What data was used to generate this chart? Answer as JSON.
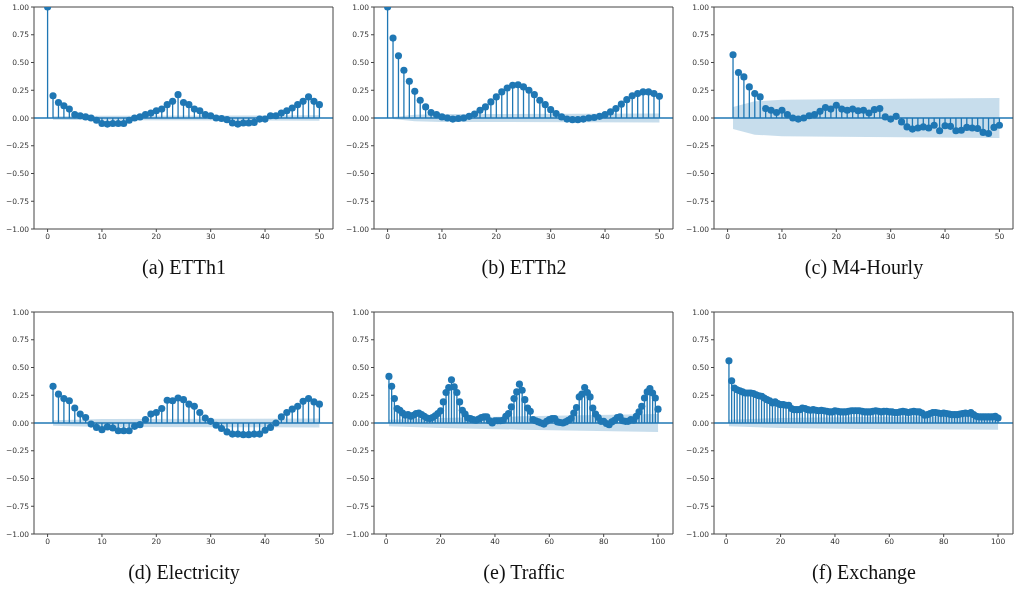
{
  "chart_data": [
    {
      "type": "lollipop",
      "title": "(a) ETTh1",
      "xlim": [
        -2.5,
        52.5
      ],
      "xticks": [
        0,
        10,
        20,
        30,
        40,
        50
      ],
      "ylim": [
        -1,
        1
      ],
      "yticks": [
        {
          "value": -1,
          "label": "−1.00"
        },
        {
          "value": -0.75,
          "label": "−0.75"
        },
        {
          "value": -0.5,
          "label": "−0.50"
        },
        {
          "value": -0.25,
          "label": "−0.25"
        },
        {
          "value": 0,
          "label": "0.00"
        },
        {
          "value": 0.25,
          "label": "0.25"
        },
        {
          "value": 0.5,
          "label": "0.50"
        },
        {
          "value": 0.75,
          "label": "0.75"
        },
        {
          "value": 1,
          "label": "1.00"
        }
      ],
      "ref_lines": [
        {
          "axis": "y",
          "value": 0,
          "color": "#1f77b4"
        }
      ],
      "series": [
        {
          "color": "#1f77b4",
          "x": [
            0,
            1,
            2,
            3,
            4,
            5,
            6,
            7,
            8,
            9,
            10,
            11,
            12,
            13,
            14,
            15,
            16,
            17,
            18,
            19,
            20,
            21,
            22,
            23,
            24,
            25,
            26,
            27,
            28,
            29,
            30,
            31,
            32,
            33,
            34,
            35,
            36,
            37,
            38,
            39,
            40,
            41,
            42,
            43,
            44,
            45,
            46,
            47,
            48,
            49,
            50
          ],
          "values": [
            1.0,
            0.2,
            0.14,
            0.11,
            0.08,
            0.03,
            0.02,
            0.01,
            0.0,
            -0.02,
            -0.05,
            -0.055,
            -0.05,
            -0.05,
            -0.05,
            -0.02,
            0.0,
            0.01,
            0.03,
            0.045,
            0.065,
            0.08,
            0.12,
            0.15,
            0.21,
            0.14,
            0.12,
            0.08,
            0.065,
            0.03,
            0.02,
            0.0,
            -0.005,
            -0.015,
            -0.045,
            -0.055,
            -0.045,
            -0.045,
            -0.04,
            -0.01,
            -0.01,
            0.02,
            0.02,
            0.045,
            0.065,
            0.09,
            0.12,
            0.15,
            0.19,
            0.15,
            0.12
          ]
        },
        {
          "type": "area",
          "color": "#1f77b4",
          "x": [
            1,
            10,
            50
          ],
          "values": [
            null,
            null,
            null
          ],
          "lower": [
            -0.015,
            -0.02,
            -0.025
          ],
          "upper": [
            0.015,
            0.02,
            0.025
          ]
        }
      ]
    },
    {
      "type": "lollipop",
      "title": "(b) ETTh2",
      "xlim": [
        -2.5,
        52.5
      ],
      "xticks": [
        0,
        10,
        20,
        30,
        40,
        50
      ],
      "ylim": [
        -1,
        1
      ],
      "yticks": [
        {
          "value": -1,
          "label": "−1.00"
        },
        {
          "value": -0.75,
          "label": "−0.75"
        },
        {
          "value": -0.5,
          "label": "−0.50"
        },
        {
          "value": -0.25,
          "label": "−0.25"
        },
        {
          "value": 0,
          "label": "0.00"
        },
        {
          "value": 0.25,
          "label": "0.25"
        },
        {
          "value": 0.5,
          "label": "0.50"
        },
        {
          "value": 0.75,
          "label": "0.75"
        },
        {
          "value": 1,
          "label": "1.00"
        }
      ],
      "ref_lines": [
        {
          "axis": "y",
          "value": 0,
          "color": "#1f77b4"
        }
      ],
      "series": [
        {
          "color": "#1f77b4",
          "x": [
            0,
            1,
            2,
            3,
            4,
            5,
            6,
            7,
            8,
            9,
            10,
            11,
            12,
            13,
            14,
            15,
            16,
            17,
            18,
            19,
            20,
            21,
            22,
            23,
            24,
            25,
            26,
            27,
            28,
            29,
            30,
            31,
            32,
            33,
            34,
            35,
            36,
            37,
            38,
            39,
            40,
            41,
            42,
            43,
            44,
            45,
            46,
            47,
            48,
            49,
            50
          ],
          "values": [
            1.0,
            0.72,
            0.56,
            0.43,
            0.33,
            0.24,
            0.16,
            0.1,
            0.05,
            0.03,
            0.01,
            0.0,
            -0.01,
            -0.005,
            0.0,
            0.015,
            0.035,
            0.07,
            0.1,
            0.145,
            0.19,
            0.235,
            0.27,
            0.295,
            0.3,
            0.28,
            0.25,
            0.21,
            0.16,
            0.12,
            0.075,
            0.04,
            0.01,
            -0.01,
            -0.015,
            -0.015,
            -0.01,
            0.0,
            0.005,
            0.015,
            0.03,
            0.055,
            0.085,
            0.125,
            0.165,
            0.2,
            0.22,
            0.235,
            0.235,
            0.22,
            0.195
          ]
        },
        {
          "type": "area",
          "color": "#1f77b4",
          "x": [
            1,
            5,
            10,
            50
          ],
          "values": [
            null,
            null,
            null,
            null
          ],
          "lower": [
            -0.01,
            -0.03,
            -0.035,
            -0.04
          ],
          "upper": [
            0.01,
            0.03,
            0.035,
            0.04
          ]
        }
      ]
    },
    {
      "type": "lollipop",
      "title": "(c) M4-Hourly",
      "xlim": [
        -2.5,
        52.5
      ],
      "xticks": [
        0,
        10,
        20,
        30,
        40,
        50
      ],
      "ylim": [
        -1,
        1
      ],
      "yticks": [
        {
          "value": -1,
          "label": "−1.00"
        },
        {
          "value": -0.75,
          "label": "−0.75"
        },
        {
          "value": -0.5,
          "label": "−0.50"
        },
        {
          "value": -0.25,
          "label": "−0.25"
        },
        {
          "value": 0,
          "label": "0.00"
        },
        {
          "value": 0.25,
          "label": "0.25"
        },
        {
          "value": 0.5,
          "label": "0.50"
        },
        {
          "value": 0.75,
          "label": "0.75"
        },
        {
          "value": 1,
          "label": "1.00"
        }
      ],
      "ref_lines": [
        {
          "axis": "y",
          "value": 0,
          "color": "#1f77b4"
        }
      ],
      "series": [
        {
          "color": "#1f77b4",
          "x": [
            1,
            2,
            3,
            4,
            5,
            6,
            7,
            8,
            9,
            10,
            11,
            12,
            13,
            14,
            15,
            16,
            17,
            18,
            19,
            20,
            21,
            22,
            23,
            24,
            25,
            26,
            27,
            28,
            29,
            30,
            31,
            32,
            33,
            34,
            35,
            36,
            37,
            38,
            39,
            40,
            41,
            42,
            43,
            44,
            45,
            46,
            47,
            48,
            49,
            50
          ],
          "values": [
            0.57,
            0.41,
            0.37,
            0.28,
            0.22,
            0.19,
            0.085,
            0.07,
            0.05,
            0.07,
            0.03,
            0.0,
            -0.01,
            0.0,
            0.02,
            0.03,
            0.06,
            0.095,
            0.08,
            0.115,
            0.08,
            0.07,
            0.08,
            0.065,
            0.07,
            0.045,
            0.075,
            0.085,
            0.01,
            -0.01,
            0.015,
            -0.035,
            -0.08,
            -0.1,
            -0.09,
            -0.08,
            -0.09,
            -0.065,
            -0.115,
            -0.07,
            -0.075,
            -0.115,
            -0.11,
            -0.085,
            -0.09,
            -0.095,
            -0.13,
            -0.14,
            -0.085,
            -0.065
          ]
        },
        {
          "type": "area",
          "color": "#1f77b4",
          "x": [
            1,
            5,
            10,
            20,
            50
          ],
          "values": [
            null,
            null,
            null,
            null,
            null
          ],
          "lower": [
            -0.1,
            -0.15,
            -0.165,
            -0.17,
            -0.18
          ],
          "upper": [
            0.1,
            0.15,
            0.165,
            0.17,
            0.18
          ]
        }
      ]
    },
    {
      "type": "lollipop",
      "title": "(d) Electricity",
      "xlim": [
        -2.5,
        52.5
      ],
      "xticks": [
        0,
        10,
        20,
        30,
        40,
        50
      ],
      "ylim": [
        -1,
        1
      ],
      "yticks": [
        {
          "value": -1,
          "label": "−1.00"
        },
        {
          "value": -0.75,
          "label": "−0.75"
        },
        {
          "value": -0.5,
          "label": "−0.50"
        },
        {
          "value": -0.25,
          "label": "−0.25"
        },
        {
          "value": 0,
          "label": "0.00"
        },
        {
          "value": 0.25,
          "label": "0.25"
        },
        {
          "value": 0.5,
          "label": "0.50"
        },
        {
          "value": 0.75,
          "label": "0.75"
        },
        {
          "value": 1,
          "label": "1.00"
        }
      ],
      "ref_lines": [
        {
          "axis": "y",
          "value": 0,
          "color": "#1f77b4"
        }
      ],
      "series": [
        {
          "color": "#1f77b4",
          "x": [
            1,
            2,
            3,
            4,
            5,
            6,
            7,
            8,
            9,
            10,
            11,
            12,
            13,
            14,
            15,
            16,
            17,
            18,
            19,
            20,
            21,
            22,
            23,
            24,
            25,
            26,
            27,
            28,
            29,
            30,
            31,
            32,
            33,
            34,
            35,
            36,
            37,
            38,
            39,
            40,
            41,
            42,
            43,
            44,
            45,
            46,
            47,
            48,
            49,
            50
          ],
          "values": [
            0.33,
            0.26,
            0.22,
            0.2,
            0.135,
            0.08,
            0.05,
            -0.01,
            -0.04,
            -0.06,
            -0.035,
            -0.045,
            -0.07,
            -0.07,
            -0.07,
            -0.03,
            -0.015,
            0.03,
            0.08,
            0.095,
            0.13,
            0.205,
            0.2,
            0.225,
            0.21,
            0.17,
            0.15,
            0.095,
            0.045,
            0.015,
            -0.02,
            -0.05,
            -0.08,
            -0.1,
            -0.1,
            -0.105,
            -0.105,
            -0.1,
            -0.1,
            -0.065,
            -0.04,
            0.0,
            0.055,
            0.095,
            0.125,
            0.15,
            0.195,
            0.22,
            0.19,
            0.17
          ]
        },
        {
          "type": "area",
          "color": "#1f77b4",
          "x": [
            1,
            10,
            50
          ],
          "values": [
            null,
            null,
            null
          ],
          "lower": [
            -0.025,
            -0.035,
            -0.04
          ],
          "upper": [
            0.025,
            0.035,
            0.04
          ]
        }
      ]
    },
    {
      "type": "lollipop",
      "title": "(e) Traffic",
      "xlim": [
        -4.5,
        105.5
      ],
      "xticks": [
        0,
        20,
        40,
        60,
        80,
        100
      ],
      "ylim": [
        -1,
        1
      ],
      "yticks": [
        {
          "value": -1,
          "label": "−1.00"
        },
        {
          "value": -0.75,
          "label": "−0.75"
        },
        {
          "value": -0.5,
          "label": "−0.50"
        },
        {
          "value": -0.25,
          "label": "−0.25"
        },
        {
          "value": 0,
          "label": "0.00"
        },
        {
          "value": 0.25,
          "label": "0.25"
        },
        {
          "value": 0.5,
          "label": "0.50"
        },
        {
          "value": 0.75,
          "label": "0.75"
        },
        {
          "value": 1,
          "label": "1.00"
        }
      ],
      "ref_lines": [
        {
          "axis": "y",
          "value": 0,
          "color": "#1f77b4"
        }
      ],
      "series": [
        {
          "color": "#1f77b4",
          "x": [
            1,
            2,
            3,
            4,
            5,
            6,
            7,
            8,
            9,
            10,
            11,
            12,
            13,
            14,
            15,
            16,
            17,
            18,
            19,
            20,
            21,
            22,
            23,
            24,
            25,
            26,
            27,
            28,
            29,
            30,
            31,
            32,
            33,
            34,
            35,
            36,
            37,
            38,
            39,
            40,
            41,
            42,
            43,
            44,
            45,
            46,
            47,
            48,
            49,
            50,
            51,
            52,
            53,
            54,
            55,
            56,
            57,
            58,
            59,
            60,
            61,
            62,
            63,
            64,
            65,
            66,
            67,
            68,
            69,
            70,
            71,
            72,
            73,
            74,
            75,
            76,
            77,
            78,
            79,
            80,
            81,
            82,
            83,
            84,
            85,
            86,
            87,
            88,
            89,
            90,
            91,
            92,
            93,
            94,
            95,
            96,
            97,
            98,
            99,
            100
          ],
          "values": [
            0.42,
            0.33,
            0.22,
            0.13,
            0.115,
            0.09,
            0.07,
            0.075,
            0.06,
            0.07,
            0.085,
            0.09,
            0.075,
            0.06,
            0.045,
            0.04,
            0.05,
            0.065,
            0.085,
            0.11,
            0.19,
            0.275,
            0.32,
            0.39,
            0.325,
            0.275,
            0.19,
            0.115,
            0.08,
            0.045,
            0.04,
            0.03,
            0.025,
            0.035,
            0.05,
            0.055,
            0.055,
            0.02,
            0.0,
            0.02,
            0.02,
            0.02,
            0.025,
            0.06,
            0.085,
            0.145,
            0.22,
            0.28,
            0.35,
            0.295,
            0.21,
            0.135,
            0.105,
            0.03,
            0.02,
            0.01,
            0.0,
            -0.01,
            0.015,
            0.03,
            0.04,
            0.04,
            0.01,
            0.005,
            0.0,
            0.01,
            0.025,
            0.04,
            0.09,
            0.14,
            0.235,
            0.26,
            0.32,
            0.275,
            0.235,
            0.135,
            0.08,
            0.05,
            0.015,
            0.015,
            -0.005,
            -0.015,
            0.01,
            0.025,
            0.05,
            0.055,
            0.02,
            0.015,
            0.015,
            0.03,
            0.025,
            0.06,
            0.1,
            0.15,
            0.225,
            0.28,
            0.31,
            0.27,
            0.225,
            0.125
          ]
        },
        {
          "type": "area",
          "color": "#1f77b4",
          "x": [
            1,
            20,
            50,
            100
          ],
          "values": [
            null,
            null,
            null,
            null
          ],
          "lower": [
            -0.03,
            -0.045,
            -0.06,
            -0.08
          ],
          "upper": [
            0.03,
            0.045,
            0.06,
            0.08
          ]
        }
      ]
    },
    {
      "type": "lollipop",
      "title": "(f) Exchange",
      "xlim": [
        -4.5,
        105.5
      ],
      "xticks": [
        0,
        20,
        40,
        60,
        80,
        100
      ],
      "ylim": [
        -1,
        1
      ],
      "yticks": [
        {
          "value": -1,
          "label": "−1.00"
        },
        {
          "value": -0.75,
          "label": "−0.75"
        },
        {
          "value": -0.5,
          "label": "−0.50"
        },
        {
          "value": -0.25,
          "label": "−0.25"
        },
        {
          "value": 0,
          "label": "0.00"
        },
        {
          "value": 0.25,
          "label": "0.25"
        },
        {
          "value": 0.5,
          "label": "0.50"
        },
        {
          "value": 0.75,
          "label": "0.75"
        },
        {
          "value": 1,
          "label": "1.00"
        }
      ],
      "ref_lines": [
        {
          "axis": "y",
          "value": 0,
          "color": "#1f77b4"
        }
      ],
      "series": [
        {
          "color": "#1f77b4",
          "x": [
            1,
            2,
            3,
            4,
            5,
            6,
            7,
            8,
            9,
            10,
            11,
            12,
            13,
            14,
            15,
            16,
            17,
            18,
            19,
            20,
            21,
            22,
            23,
            24,
            25,
            26,
            27,
            28,
            29,
            30,
            31,
            32,
            33,
            34,
            35,
            36,
            37,
            38,
            39,
            40,
            41,
            42,
            43,
            44,
            45,
            46,
            47,
            48,
            49,
            50,
            51,
            52,
            53,
            54,
            55,
            56,
            57,
            58,
            59,
            60,
            61,
            62,
            63,
            64,
            65,
            66,
            67,
            68,
            69,
            70,
            71,
            72,
            73,
            74,
            75,
            76,
            77,
            78,
            79,
            80,
            81,
            82,
            83,
            84,
            85,
            86,
            87,
            88,
            89,
            90,
            91,
            92,
            93,
            94,
            95,
            96,
            97,
            98,
            99,
            100
          ],
          "values": [
            0.56,
            0.38,
            0.315,
            0.3,
            0.29,
            0.28,
            0.27,
            0.27,
            0.27,
            0.265,
            0.255,
            0.245,
            0.24,
            0.225,
            0.21,
            0.2,
            0.18,
            0.19,
            0.175,
            0.165,
            0.165,
            0.16,
            0.16,
            0.13,
            0.12,
            0.12,
            0.12,
            0.135,
            0.13,
            0.12,
            0.115,
            0.12,
            0.115,
            0.11,
            0.115,
            0.11,
            0.105,
            0.1,
            0.1,
            0.11,
            0.105,
            0.1,
            0.1,
            0.1,
            0.105,
            0.11,
            0.11,
            0.11,
            0.11,
            0.105,
            0.1,
            0.1,
            0.1,
            0.105,
            0.11,
            0.105,
            0.1,
            0.105,
            0.105,
            0.1,
            0.1,
            0.095,
            0.095,
            0.1,
            0.105,
            0.1,
            0.095,
            0.1,
            0.105,
            0.1,
            0.1,
            0.09,
            0.07,
            0.075,
            0.085,
            0.095,
            0.095,
            0.09,
            0.085,
            0.09,
            0.085,
            0.08,
            0.075,
            0.075,
            0.075,
            0.08,
            0.085,
            0.09,
            0.085,
            0.095,
            0.075,
            0.06,
            0.055,
            0.055,
            0.055,
            0.055,
            0.055,
            0.055,
            0.06,
            0.045
          ]
        },
        {
          "type": "area",
          "color": "#1f77b4",
          "x": [
            1,
            20,
            50,
            100
          ],
          "values": [
            null,
            null,
            null,
            null
          ],
          "lower": [
            -0.03,
            -0.045,
            -0.055,
            -0.06
          ],
          "upper": [
            0.03,
            0.045,
            0.055,
            0.06
          ]
        }
      ]
    }
  ]
}
